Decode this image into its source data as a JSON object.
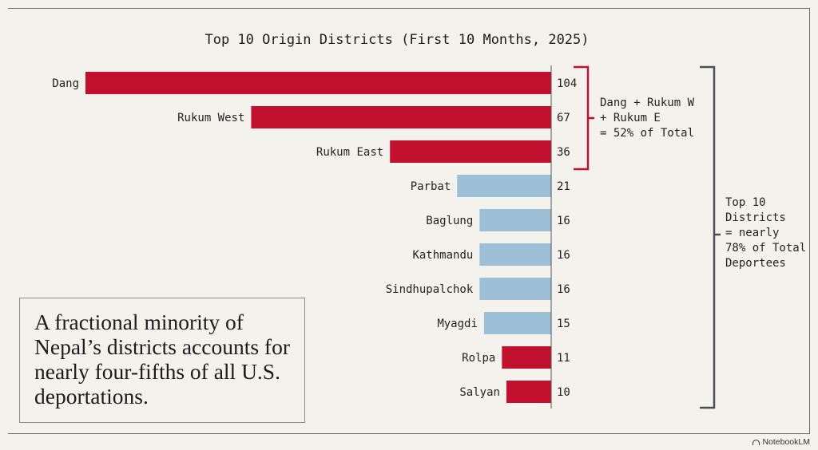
{
  "chart_data": {
    "type": "bar",
    "orientation": "horizontal",
    "title": "Top 10 Origin Districts (First 10 Months, 2025)",
    "categories": [
      "Dang",
      "Rukum West",
      "Rukum East",
      "Parbat",
      "Baglung",
      "Kathmandu",
      "Sindhupalchok",
      "Myagdi",
      "Rolpa",
      "Salyan"
    ],
    "values": [
      104,
      67,
      36,
      21,
      16,
      16,
      16,
      15,
      11,
      10
    ],
    "colors": [
      "#c2102f",
      "#c2102f",
      "#c2102f",
      "#9dc0d6",
      "#9dc0d6",
      "#9dc0d6",
      "#9dc0d6",
      "#9dc0d6",
      "#c2102f",
      "#c2102f"
    ],
    "xlim": [
      0,
      104
    ],
    "grid": false,
    "legend": "none"
  },
  "annotations": {
    "bracket_small": "Dang + Rukum W\n+ Rukum E\n= 52% of Total",
    "bracket_large": "Top 10\nDistricts\n= nearly\n78% of Total\nDeportees"
  },
  "callout": {
    "text": "A fractional minority of Nepal’s districts accounts for nearly four-fifths of all U.S. deportations."
  },
  "brand": {
    "label": "NotebookLM"
  },
  "colors": {
    "accent_red": "#c2102f",
    "accent_blue": "#9dc0d6",
    "background": "#f4f2ec"
  }
}
